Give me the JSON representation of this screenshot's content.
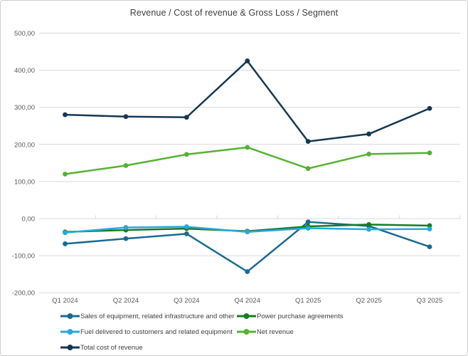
{
  "chart_data": {
    "type": "line",
    "title": "Revenue / Cost of revenue & Gross Loss / Segment",
    "categories": [
      "Q1 2024",
      "Q2 2024",
      "Q3 2024",
      "Q4 2024",
      "Q1 2025",
      "Q2 2025",
      "Q3 2025"
    ],
    "series": [
      {
        "name": "Sales of equipment, related infrastructure and other",
        "color": "#196b93",
        "values": [
          -68,
          -54,
          -41,
          -143,
          -9,
          -20,
          -76
        ]
      },
      {
        "name": "Power purchase agreements",
        "color": "#157d21",
        "values": [
          -36,
          -31,
          -27,
          -34,
          -21,
          -16,
          -19
        ]
      },
      {
        "name": "Fuel delivered to customers and related equipment",
        "color": "#2aa7de",
        "values": [
          -38,
          -24,
          -22,
          -36,
          -26,
          -29,
          -28
        ]
      },
      {
        "name": "Net revenue",
        "color": "#55b233",
        "values": [
          120,
          143,
          173,
          192,
          135,
          174,
          177
        ]
      },
      {
        "name": "Total cost of revenue",
        "color": "#153852",
        "values": [
          280,
          275,
          273,
          425,
          208,
          228,
          297
        ]
      }
    ],
    "ylim": [
      -200,
      500
    ],
    "ytick_step": 100,
    "ytick_labels": [
      "500,00",
      "400,00",
      "300,00",
      "200,00",
      "100,00",
      "0,00",
      "-100,00",
      "-200,00"
    ],
    "grid": true,
    "legend_position": "bottom-left",
    "grid_color": "#d9d9d9",
    "axis_label_color": "#595959",
    "title_color": "#404040"
  }
}
